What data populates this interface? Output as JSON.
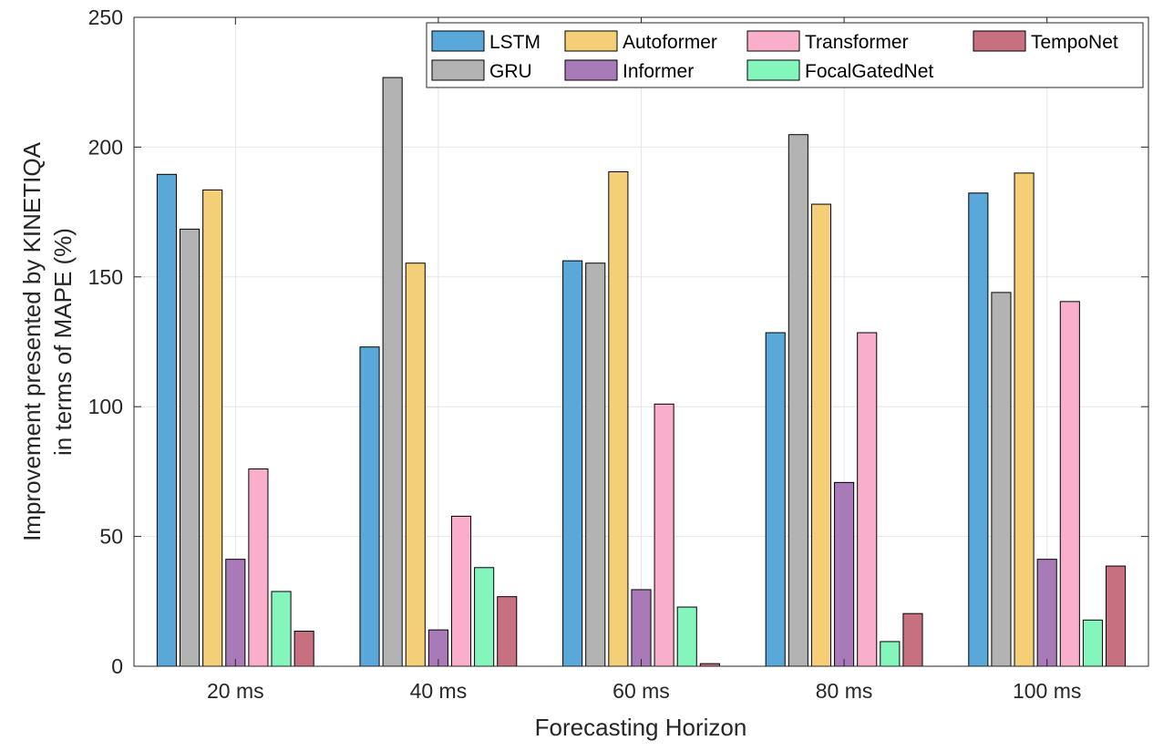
{
  "chart_data": {
    "type": "bar",
    "xlabel": "Forecasting Horizon",
    "ylabel": [
      "Improvement presented by KINETIQA",
      "in terms of MAPE (%)"
    ],
    "ylim": [
      0,
      250
    ],
    "yticks": [
      0,
      50,
      100,
      150,
      200,
      250
    ],
    "grid": true,
    "legend_position": "top-right",
    "categories": [
      "20 ms",
      "40 ms",
      "60 ms",
      "80 ms",
      "100 ms"
    ],
    "series": [
      {
        "name": "LSTM",
        "color": "#5aa7d9",
        "values": [
          189.5,
          123,
          156.2,
          128.5,
          182.3
        ]
      },
      {
        "name": "GRU",
        "color": "#b3b3b3",
        "values": [
          168.4,
          226.8,
          155.3,
          204.8,
          144
        ]
      },
      {
        "name": "Autoformer",
        "color": "#f4cf78",
        "values": [
          183.5,
          155.3,
          190.5,
          178,
          190
        ]
      },
      {
        "name": "Informer",
        "color": "#a97ab8",
        "values": [
          41.2,
          14,
          29.5,
          70.8,
          41.2
        ]
      },
      {
        "name": "Transformer",
        "color": "#f9aecb",
        "values": [
          76,
          57.8,
          101,
          128.5,
          140.5
        ]
      },
      {
        "name": "FocalGatedNet",
        "color": "#84f5bb",
        "values": [
          28.8,
          38,
          22.8,
          9.5,
          17.8
        ]
      },
      {
        "name": "TempoNet",
        "color": "#c77180",
        "values": [
          13.5,
          26.8,
          1,
          20.3,
          38.6
        ]
      }
    ]
  }
}
